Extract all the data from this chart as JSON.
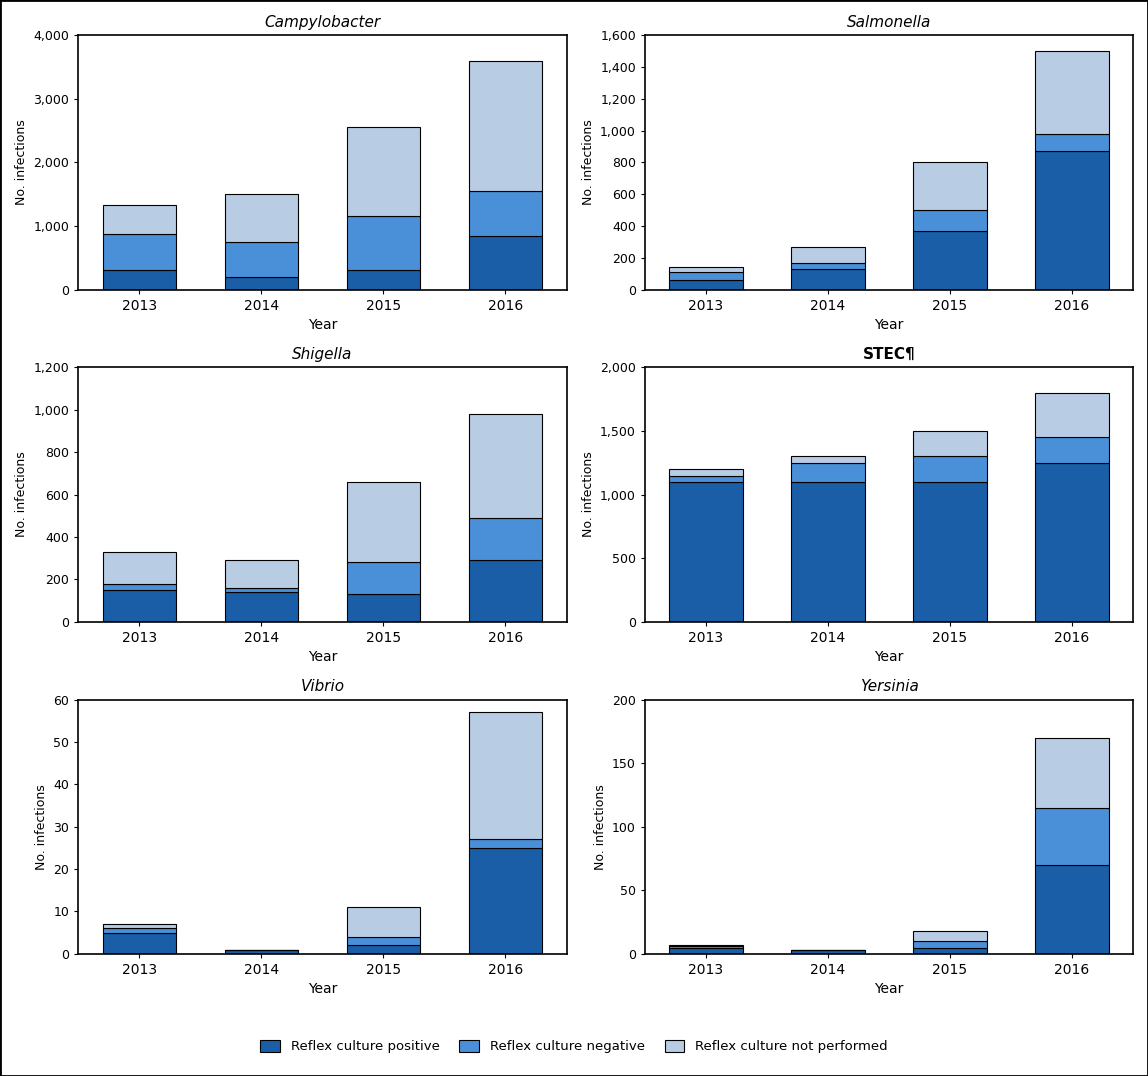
{
  "subplots": [
    {
      "title": "Campylobacter",
      "title_style": "italic",
      "ylim": [
        0,
        4000
      ],
      "yticks": [
        0,
        1000,
        2000,
        3000,
        4000
      ],
      "ylabel": "No. infections",
      "xlabel": "Year",
      "years": [
        2013,
        2014,
        2015,
        2016
      ],
      "reflex_positive": [
        300,
        200,
        300,
        850
      ],
      "reflex_negative": [
        580,
        550,
        850,
        700
      ],
      "reflex_not_performed": [
        450,
        750,
        1400,
        2050
      ]
    },
    {
      "title": "Salmonella",
      "title_style": "italic",
      "ylim": [
        0,
        1600
      ],
      "yticks": [
        0,
        200,
        400,
        600,
        800,
        1000,
        1200,
        1400,
        1600
      ],
      "ylabel": "No. infections",
      "xlabel": "Year",
      "years": [
        2013,
        2014,
        2015,
        2016
      ],
      "reflex_positive": [
        60,
        130,
        370,
        870
      ],
      "reflex_negative": [
        50,
        40,
        130,
        110
      ],
      "reflex_not_performed": [
        30,
        100,
        300,
        520
      ]
    },
    {
      "title": "Shigella",
      "title_style": "italic",
      "ylim": [
        0,
        1200
      ],
      "yticks": [
        0,
        200,
        400,
        600,
        800,
        1000,
        1200
      ],
      "ylabel": "No. infections",
      "xlabel": "Year",
      "years": [
        2013,
        2014,
        2015,
        2016
      ],
      "reflex_positive": [
        150,
        140,
        130,
        290
      ],
      "reflex_negative": [
        30,
        20,
        150,
        200
      ],
      "reflex_not_performed": [
        150,
        130,
        380,
        490
      ]
    },
    {
      "title": "STEC¶",
      "title_style": "bold",
      "ylim": [
        0,
        2000
      ],
      "yticks": [
        0,
        500,
        1000,
        1500,
        2000
      ],
      "ylabel": "No. infections",
      "xlabel": "Year",
      "years": [
        2013,
        2014,
        2015,
        2016
      ],
      "reflex_positive": [
        1100,
        1100,
        1100,
        1250
      ],
      "reflex_negative": [
        50,
        150,
        200,
        200
      ],
      "reflex_not_performed": [
        50,
        50,
        200,
        350
      ]
    },
    {
      "title": "Vibrio",
      "title_style": "italic",
      "ylim": [
        0,
        60
      ],
      "yticks": [
        0,
        10,
        20,
        30,
        40,
        50,
        60
      ],
      "ylabel": "No. infections",
      "xlabel": "Year",
      "years": [
        2013,
        2014,
        2015,
        2016
      ],
      "reflex_positive": [
        5,
        1,
        2,
        25
      ],
      "reflex_negative": [
        1,
        0,
        2,
        2
      ],
      "reflex_not_performed": [
        1,
        0,
        7,
        30
      ]
    },
    {
      "title": "Yersinia",
      "title_style": "italic",
      "ylim": [
        0,
        200
      ],
      "yticks": [
        0,
        50,
        100,
        150,
        200
      ],
      "ylabel": "No. infections",
      "xlabel": "Year",
      "years": [
        2013,
        2014,
        2015,
        2016
      ],
      "reflex_positive": [
        5,
        3,
        5,
        70
      ],
      "reflex_negative": [
        1,
        0,
        5,
        45
      ],
      "reflex_not_performed": [
        1,
        0,
        8,
        55
      ]
    }
  ],
  "colors": {
    "reflex_positive": "#1A5EA8",
    "reflex_negative": "#4A90D9",
    "reflex_not_performed": "#B8CCE4"
  },
  "legend_labels": [
    "Reflex culture positive",
    "Reflex culture negative",
    "Reflex culture not performed"
  ],
  "bar_width": 0.6,
  "figure_bg": "#FFFFFF",
  "axes_bg": "#FFFFFF"
}
